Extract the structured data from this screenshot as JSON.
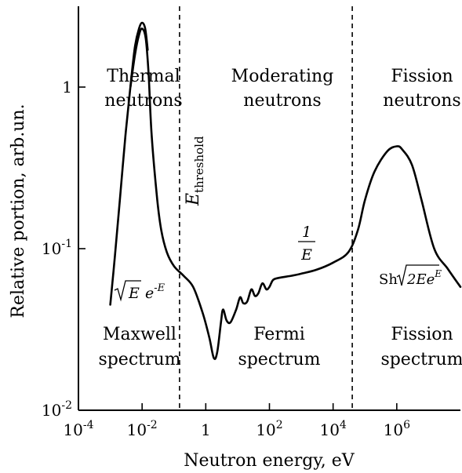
{
  "chart_data": {
    "type": "line",
    "xlabel": "Neutron energy, eV",
    "ylabel": "Relative portion, arb.un.",
    "xscale": "log",
    "yscale": "log",
    "xlim": [
      0.0001,
      100000000
    ],
    "ylim": [
      0.01,
      3.1623
    ],
    "grid": false,
    "x_ticks": [
      {
        "value": 0.0001,
        "base": "10",
        "exp": "-4"
      },
      {
        "value": 0.01,
        "base": "10",
        "exp": "-2"
      },
      {
        "value": 1,
        "base": "1",
        "exp": ""
      },
      {
        "value": 100,
        "base": "10",
        "exp": "2"
      },
      {
        "value": 10000,
        "base": "10",
        "exp": "4"
      },
      {
        "value": 1000000,
        "base": "10",
        "exp": "6"
      }
    ],
    "y_ticks": [
      {
        "value": 0.01,
        "base": "10",
        "exp": "-2"
      },
      {
        "value": 0.1,
        "base": "10",
        "exp": "-1"
      },
      {
        "value": 1,
        "base": "1",
        "exp": ""
      }
    ],
    "boundaries": [
      {
        "x": 0.15,
        "label_main": "E",
        "label_sub": "threshold"
      },
      {
        "x": 40000
      }
    ],
    "regions_top": [
      {
        "lines": [
          "Thermal",
          "neutrons"
        ]
      },
      {
        "lines": [
          "Moderating",
          "neutrons"
        ]
      },
      {
        "lines": [
          "Fission",
          "neutrons"
        ]
      }
    ],
    "regions_bottom": [
      {
        "lines": [
          "Maxwell",
          "spectrum"
        ]
      },
      {
        "lines": [
          "Fermi",
          "spectrum"
        ]
      },
      {
        "lines": [
          "Fission",
          "spectrum"
        ]
      }
    ],
    "formulas": {
      "maxwell": {
        "root": "E",
        "base": "e",
        "exp": "-E"
      },
      "fermi": {
        "num": "1",
        "den": "E"
      },
      "fission": {
        "prefix": "Sh",
        "root": "2Ee",
        "exp": "E"
      }
    },
    "series": [
      {
        "color": "#000000",
        "segments": [
          [
            [
              0.001,
              0.045
            ],
            [
              0.0014,
              0.09
            ],
            [
              0.002,
              0.2
            ],
            [
              0.003,
              0.5
            ],
            [
              0.0045,
              1.1
            ],
            [
              0.006,
              1.8
            ],
            [
              0.008,
              2.3
            ],
            [
              0.01,
              2.5
            ],
            [
              0.0125,
              2.3
            ],
            [
              0.015,
              1.7
            ]
          ],
          [
            [
              0.0043,
              1.0
            ],
            [
              0.006,
              1.6
            ],
            [
              0.008,
              2.1
            ],
            [
              0.01,
              2.3
            ],
            [
              0.013,
              2.0
            ],
            [
              0.016,
              1.2
            ],
            [
              0.02,
              0.5
            ],
            [
              0.03,
              0.2
            ],
            [
              0.04,
              0.13
            ],
            [
              0.06,
              0.095
            ],
            [
              0.1,
              0.078
            ],
            [
              0.2,
              0.068
            ],
            [
              0.4,
              0.058
            ],
            [
              0.8,
              0.04
            ],
            [
              1.3,
              0.028
            ],
            [
              1.8,
              0.021
            ],
            [
              2.3,
              0.023
            ],
            [
              3,
              0.035
            ],
            [
              3.5,
              0.042
            ],
            [
              4.5,
              0.036
            ],
            [
              6,
              0.035
            ],
            [
              9,
              0.042
            ],
            [
              12,
              0.05
            ],
            [
              15,
              0.046
            ],
            [
              20,
              0.047
            ],
            [
              27,
              0.056
            ],
            [
              35,
              0.051
            ],
            [
              45,
              0.053
            ],
            [
              60,
              0.061
            ],
            [
              80,
              0.056
            ],
            [
              100,
              0.058
            ],
            [
              130,
              0.064
            ],
            [
              200,
              0.066
            ],
            [
              500,
              0.068
            ],
            [
              1000,
              0.07
            ],
            [
              3000,
              0.074
            ],
            [
              10000,
              0.082
            ],
            [
              30000,
              0.095
            ],
            [
              60000,
              0.13
            ],
            [
              100000,
              0.2
            ],
            [
              200000,
              0.3
            ],
            [
              500000,
              0.4
            ],
            [
              1000000,
              0.43
            ],
            [
              1500000,
              0.41
            ],
            [
              3000000,
              0.33
            ],
            [
              6000000,
              0.2
            ],
            [
              15000000,
              0.1
            ],
            [
              40000000,
              0.075
            ],
            [
              100000000,
              0.058
            ]
          ]
        ]
      }
    ]
  }
}
